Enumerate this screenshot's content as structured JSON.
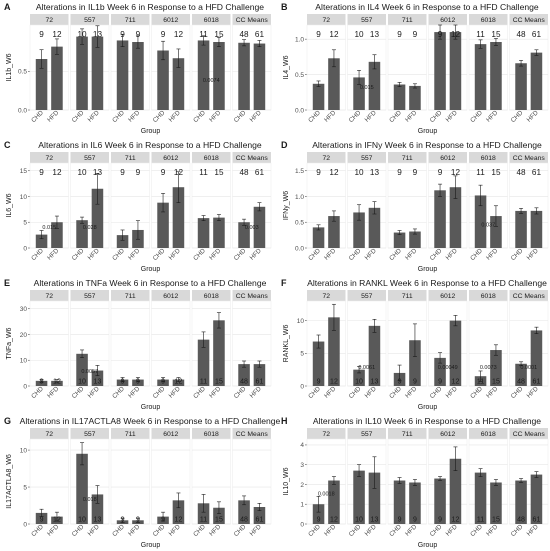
{
  "figure": {
    "colors": {
      "bar": "#595959",
      "strip": "#d9d9d9",
      "panel_bg": "#ffffff",
      "grid": "#e6e6e6",
      "text": "#1a1a1a",
      "axis_text": "#4d4d4d"
    }
  },
  "chart_data": [
    {
      "panel_letter": "A",
      "type": "bar",
      "title": "Alterations in IL1b Week 6 in Response to a HFD Challenge",
      "ylabel": "IL1b_W6",
      "xlabel": "Group",
      "facets": [
        "72",
        "557",
        "711",
        "6012",
        "6018",
        "CC Means"
      ],
      "categories": [
        "CHD",
        "HFD"
      ],
      "y_ticks": [
        "0.0",
        "0.5"
      ],
      "y_tick_values": [
        0,
        0.5
      ],
      "ylim": [
        0,
        1.1
      ],
      "values": [
        [
          0.66,
          0.82
        ],
        [
          0.95,
          0.95
        ],
        [
          0.9,
          0.88
        ],
        [
          0.77,
          0.67
        ],
        [
          0.9,
          0.88
        ],
        [
          0.87,
          0.86
        ]
      ],
      "errors": [
        [
          0.12,
          0.1
        ],
        [
          0.1,
          0.14
        ],
        [
          0.08,
          0.08
        ],
        [
          0.12,
          0.12
        ],
        [
          0.06,
          0.06
        ],
        [
          0.04,
          0.04
        ]
      ],
      "counts": [
        [
          "9",
          "12"
        ],
        [
          "10",
          "13"
        ],
        [
          "9",
          "9"
        ],
        [
          "9",
          "12"
        ],
        [
          "11",
          "15"
        ],
        [
          "48",
          "61"
        ]
      ],
      "count_pos": "top",
      "pvalues": [
        {
          "facet": 4,
          "text": "0.0074",
          "y": 0.36
        }
      ]
    },
    {
      "panel_letter": "B",
      "type": "bar",
      "title": "Alterations in IL4 Week 6 in Response to a HFD Challenge",
      "ylabel": "IL4_W6",
      "xlabel": "Group",
      "facets": [
        "72",
        "557",
        "711",
        "6012",
        "6018",
        "CC Means"
      ],
      "categories": [
        "CHD",
        "HFD"
      ],
      "y_ticks": [
        "0.0",
        "0.5",
        "1.0"
      ],
      "y_tick_values": [
        0,
        0.5,
        1.0
      ],
      "ylim": [
        0,
        1.2
      ],
      "values": [
        [
          0.37,
          0.73
        ],
        [
          0.46,
          0.68
        ],
        [
          0.36,
          0.34
        ],
        [
          1.1,
          1.1
        ],
        [
          0.93,
          0.96
        ],
        [
          0.66,
          0.81
        ]
      ],
      "errors": [
        [
          0.04,
          0.12
        ],
        [
          0.1,
          0.1
        ],
        [
          0.03,
          0.03
        ],
        [
          0.1,
          0.1
        ],
        [
          0.06,
          0.05
        ],
        [
          0.04,
          0.04
        ]
      ],
      "counts": [
        [
          "9",
          "12"
        ],
        [
          "10",
          "13"
        ],
        [
          "9",
          "9"
        ],
        [
          "9",
          "12"
        ],
        [
          "11",
          "15"
        ],
        [
          "48",
          "61"
        ]
      ],
      "count_pos": "top",
      "pvalues": [
        {
          "facet": 1,
          "text": "0.015",
          "y": 0.3
        }
      ]
    },
    {
      "panel_letter": "C",
      "type": "bar",
      "title": "Alterations in IL6 Week 6 in Response to a HFD Challenge",
      "ylabel": "IL6_W6",
      "xlabel": "Group",
      "facets": [
        "72",
        "557",
        "711",
        "6012",
        "6018",
        "CC Means"
      ],
      "categories": [
        "CHD",
        "HFD"
      ],
      "y_ticks": [
        "0",
        "5",
        "10",
        "15"
      ],
      "y_tick_values": [
        0,
        5,
        10,
        15
      ],
      "ylim": [
        0,
        16.5
      ],
      "values": [
        [
          2.6,
          5.0
        ],
        [
          5.4,
          11.5
        ],
        [
          2.5,
          3.5
        ],
        [
          8.8,
          11.8
        ],
        [
          5.8,
          5.9
        ],
        [
          5.0,
          8.0
        ]
      ],
      "errors": [
        [
          0.8,
          1.2
        ],
        [
          0.6,
          3.0
        ],
        [
          1.0,
          1.8
        ],
        [
          1.8,
          3.0
        ],
        [
          0.5,
          0.6
        ],
        [
          0.6,
          0.8
        ]
      ],
      "counts": [
        [
          "9",
          "12"
        ],
        [
          "10",
          "13"
        ],
        [
          "9",
          "9"
        ],
        [
          "9",
          "12"
        ],
        [
          "11",
          "15"
        ],
        [
          "48",
          "61"
        ]
      ],
      "count_pos": "top",
      "pvalues": [
        {
          "facet": 0,
          "text": "0.015",
          "y": 3.7
        },
        {
          "facet": 1,
          "text": "0.028",
          "y": 3.7
        },
        {
          "facet": 5,
          "text": "0.003",
          "y": 3.7
        }
      ]
    },
    {
      "panel_letter": "D",
      "type": "bar",
      "title": "Alterations in IFNy Week 6 in Response to a HFD Challenge",
      "ylabel": "IFNy_W6",
      "xlabel": "Group",
      "facets": [
        "72",
        "557",
        "711",
        "6012",
        "6018",
        "CC Means"
      ],
      "categories": [
        "CHD",
        "HFD"
      ],
      "y_ticks": [
        "0.0",
        "0.5",
        "1.0",
        "1.5"
      ],
      "y_tick_values": [
        0,
        0.5,
        1.0,
        1.5
      ],
      "ylim": [
        0,
        1.65
      ],
      "values": [
        [
          0.4,
          0.62
        ],
        [
          0.69,
          0.78
        ],
        [
          0.3,
          0.32
        ],
        [
          1.12,
          1.18
        ],
        [
          1.02,
          0.62
        ],
        [
          0.72,
          0.72
        ]
      ],
      "errors": [
        [
          0.05,
          0.1
        ],
        [
          0.15,
          0.12
        ],
        [
          0.04,
          0.05
        ],
        [
          0.12,
          0.22
        ],
        [
          0.2,
          0.2
        ],
        [
          0.05,
          0.06
        ]
      ],
      "counts": [
        [
          "9",
          "12"
        ],
        [
          "10",
          "13"
        ],
        [
          "9",
          "9"
        ],
        [
          "9",
          "12"
        ],
        [
          "11",
          "15"
        ],
        [
          "48",
          "61"
        ]
      ],
      "count_pos": "top",
      "pvalues": [
        {
          "facet": 4,
          "text": "0.037",
          "y": 0.42
        }
      ]
    },
    {
      "panel_letter": "E",
      "type": "bar",
      "title": "Alterations in TNFa Week 6 in Response to a HFD Challenge",
      "ylabel": "TNFa_W6",
      "xlabel": "Group",
      "facets": [
        "72",
        "557",
        "711",
        "6012",
        "6018",
        "CC Means"
      ],
      "categories": [
        "CHD",
        "HFD"
      ],
      "y_ticks": [
        "0",
        "10",
        "20",
        "30"
      ],
      "y_tick_values": [
        0,
        10,
        20,
        30
      ],
      "ylim": [
        0,
        33
      ],
      "values": [
        [
          2.0,
          2.0
        ],
        [
          12.5,
          6.0
        ],
        [
          2.5,
          2.5
        ],
        [
          2.5,
          2.5
        ],
        [
          18.0,
          25.5
        ],
        [
          8.5,
          8.5
        ]
      ],
      "errors": [
        [
          0.5,
          0.5
        ],
        [
          1.5,
          2.0
        ],
        [
          0.8,
          0.8
        ],
        [
          0.8,
          0.8
        ],
        [
          3.0,
          3.0
        ],
        [
          1.2,
          1.2
        ]
      ],
      "counts": [
        [
          "9",
          "12"
        ],
        [
          "10",
          "13"
        ],
        [
          "9",
          "9"
        ],
        [
          "9",
          "12"
        ],
        [
          "11",
          "15"
        ],
        [
          "48",
          "61"
        ]
      ],
      "count_pos": "bottom",
      "pvalues": [
        {
          "facet": 1,
          "text": "0.0057",
          "y": 5.0
        }
      ]
    },
    {
      "panel_letter": "F",
      "type": "bar",
      "title": "Alterations in RANKL Week 6 in Response to a HFD Challenge",
      "ylabel": "RANKL_W6",
      "xlabel": "Group",
      "facets": [
        "72",
        "557",
        "711",
        "6012",
        "6018",
        "CC Means"
      ],
      "categories": [
        "CHD",
        "HFD"
      ],
      "y_ticks": [
        "0",
        "5",
        "10"
      ],
      "y_tick_values": [
        0,
        5,
        10
      ],
      "ylim": [
        0,
        13
      ],
      "values": [
        [
          6.8,
          10.5
        ],
        [
          2.5,
          9.2
        ],
        [
          2.0,
          7.0
        ],
        [
          4.3,
          10.0
        ],
        [
          1.5,
          5.5
        ],
        [
          3.4,
          8.5
        ]
      ],
      "errors": [
        [
          1.0,
          2.0
        ],
        [
          0.5,
          1.0
        ],
        [
          1.2,
          2.5
        ],
        [
          0.8,
          0.8
        ],
        [
          0.8,
          0.8
        ],
        [
          0.3,
          0.5
        ]
      ],
      "counts": [
        [
          "9",
          "12"
        ],
        [
          "10",
          "13"
        ],
        [
          "9",
          "9"
        ],
        [
          "9",
          "12"
        ],
        [
          "11",
          "15"
        ],
        [
          "48",
          "61"
        ]
      ],
      "count_pos": "bottom",
      "pvalues": [
        {
          "facet": 1,
          "text": "0.0061",
          "y": 2.6
        },
        {
          "facet": 3,
          "text": "0.00049",
          "y": 2.6
        },
        {
          "facet": 4,
          "text": "0.0073",
          "y": 2.6
        },
        {
          "facet": 5,
          "text": "0.0001",
          "y": 2.6
        }
      ]
    },
    {
      "panel_letter": "G",
      "type": "bar",
      "title": "Alterations in IL17ACTLA8 Week 6 in Response to a HFD Challenge",
      "ylabel": "IL17ACTLA8_W6",
      "xlabel": "Group",
      "facets": [
        "72",
        "557",
        "711",
        "6012",
        "6018",
        "CC Means"
      ],
      "categories": [
        "CHD",
        "HFD"
      ],
      "y_ticks": [
        "0",
        "5",
        "10"
      ],
      "y_tick_values": [
        0,
        5,
        10
      ],
      "ylim": [
        0,
        11.5
      ],
      "values": [
        [
          1.5,
          1.0
        ],
        [
          9.5,
          4.0
        ],
        [
          0.5,
          0.5
        ],
        [
          1.0,
          3.2
        ],
        [
          2.8,
          2.2
        ],
        [
          3.2,
          2.3
        ]
      ],
      "errors": [
        [
          0.5,
          0.6
        ],
        [
          1.5,
          1.2
        ],
        [
          0.3,
          0.3
        ],
        [
          0.6,
          1.0
        ],
        [
          1.2,
          0.8
        ],
        [
          0.6,
          0.5
        ]
      ],
      "counts": [
        [
          "9",
          "12"
        ],
        [
          "10",
          "13"
        ],
        [
          "9",
          "9"
        ],
        [
          "9",
          "12"
        ],
        [
          "11",
          "15"
        ],
        [
          "48",
          "61"
        ]
      ],
      "count_pos": "bottom",
      "pvalues": [
        {
          "facet": 1,
          "text": "0.018",
          "y": 3.1
        }
      ]
    },
    {
      "panel_letter": "H",
      "type": "bar",
      "title": "Alterations in IL10 Week 6 in Response to a HFD Challenge",
      "ylabel": "IL10_W6",
      "xlabel": "Group",
      "facets": [
        "72",
        "557",
        "711",
        "6012",
        "6018",
        "CC Means"
      ],
      "categories": [
        "CHD",
        "HFD"
      ],
      "y_ticks": [
        "0",
        "1",
        "2",
        "3",
        "4"
      ],
      "y_tick_values": [
        0,
        1,
        2,
        3,
        4
      ],
      "ylim": [
        0,
        4.3
      ],
      "values": [
        [
          1.0,
          2.2
        ],
        [
          2.7,
          2.6
        ],
        [
          2.2,
          2.1
        ],
        [
          2.3,
          3.3
        ],
        [
          2.6,
          2.1
        ],
        [
          2.2,
          2.5
        ]
      ],
      "errors": [
        [
          0.4,
          0.2
        ],
        [
          0.3,
          0.8
        ],
        [
          0.15,
          0.15
        ],
        [
          0.1,
          0.6
        ],
        [
          0.2,
          0.15
        ],
        [
          0.1,
          0.15
        ]
      ],
      "counts": [
        [
          "9",
          "12"
        ],
        [
          "10",
          "13"
        ],
        [
          "9",
          "9"
        ],
        [
          "9",
          "12"
        ],
        [
          "11",
          "15"
        ],
        [
          "48",
          "61"
        ]
      ],
      "count_pos": "bottom",
      "pvalues": [
        {
          "facet": 0,
          "text": "0.0018",
          "y": 1.45
        }
      ]
    }
  ]
}
